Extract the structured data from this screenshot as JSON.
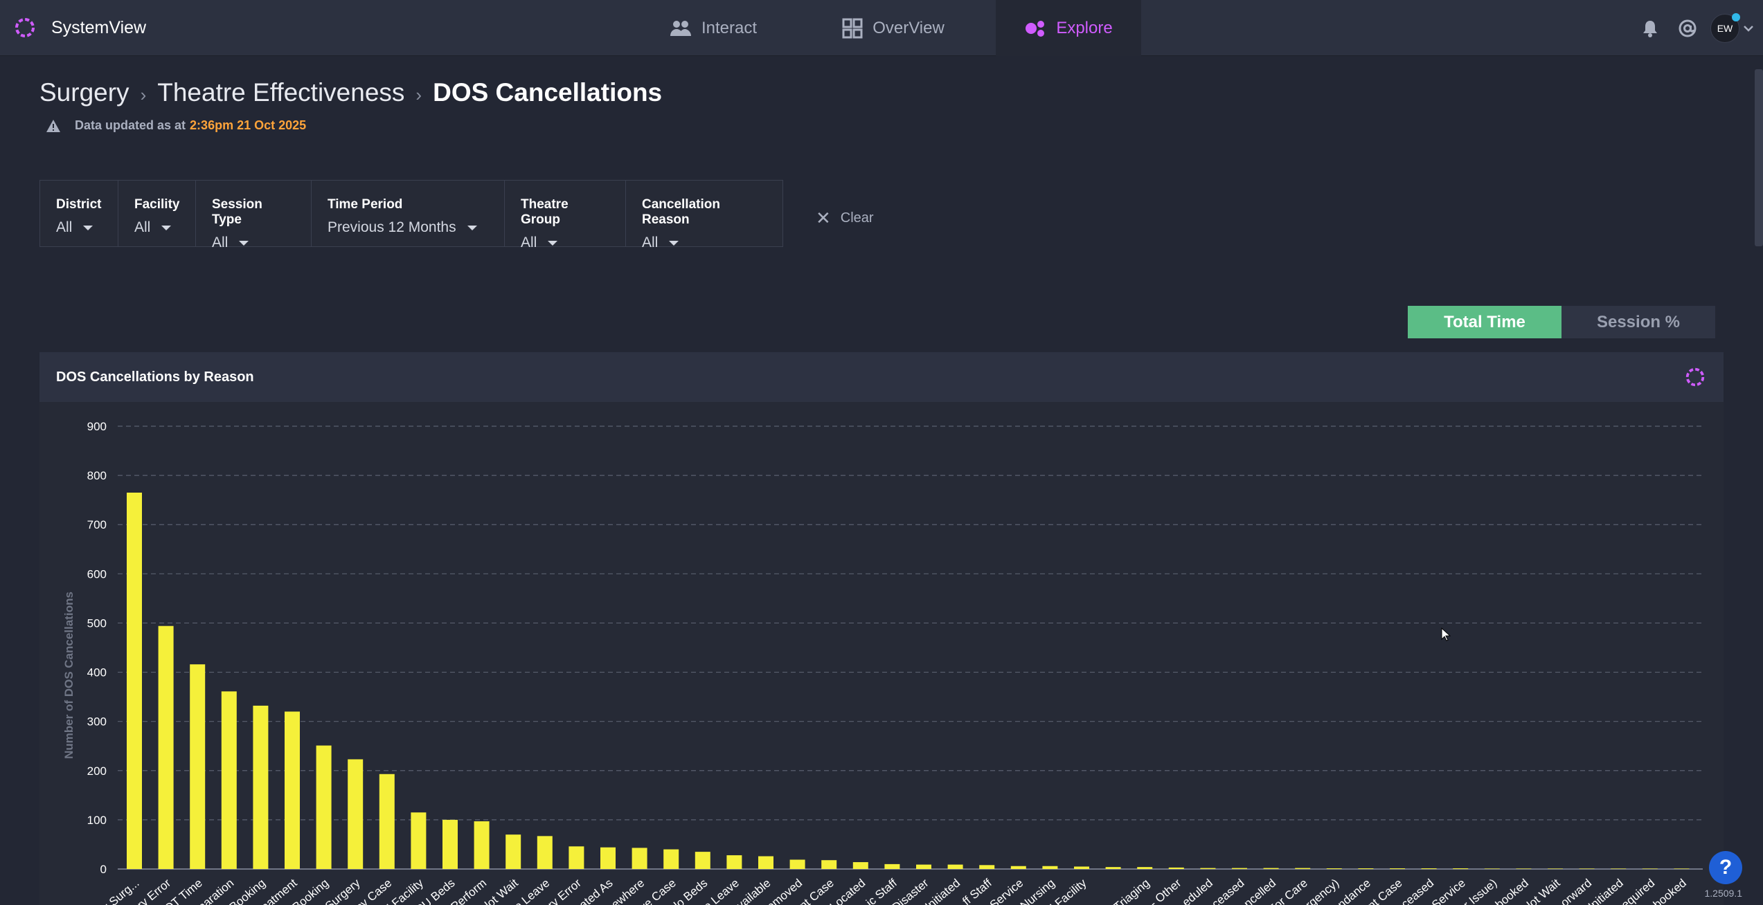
{
  "app": {
    "title": "SystemView"
  },
  "nav": {
    "tabs": [
      {
        "label": "Interact",
        "icon": "people-icon"
      },
      {
        "label": "OverView",
        "icon": "grid-icon"
      },
      {
        "label": "Explore",
        "icon": "explore-icon",
        "active": true
      }
    ],
    "avatar_initials": "EW"
  },
  "breadcrumb": {
    "items": [
      "Surgery",
      "Theatre Effectiveness"
    ],
    "current": "DOS Cancellations"
  },
  "updated": {
    "label": "Data updated as at",
    "timestamp": "2:36pm 21 Oct 2025"
  },
  "filters": [
    {
      "label": "District",
      "value": "All"
    },
    {
      "label": "Facility",
      "value": "All"
    },
    {
      "label": "Session Type",
      "value": "All"
    },
    {
      "label": "Time Period",
      "value": "Previous 12 Months"
    },
    {
      "label": "Theatre Group",
      "value": "All"
    },
    {
      "label": "Cancellation Reason",
      "value": "All"
    }
  ],
  "clear_label": "Clear",
  "toggle": {
    "on_label": "Total Time",
    "off_label": "Session %"
  },
  "panel": {
    "title": "DOS Cancellations by Reason"
  },
  "version": "1.2509.1",
  "help_label": "?",
  "colors": {
    "accent": "#d05cff",
    "bar": "#f5f03a",
    "toggle_active": "#5bbd86",
    "timestamp": "#ffa43a"
  },
  "chart_data": {
    "type": "bar",
    "title": "",
    "xlabel": "",
    "ylabel": "Number of DOS Cancellations",
    "ylim": [
      0,
      900
    ],
    "yticks": [
      0,
      100,
      200,
      300,
      400,
      500,
      600,
      700,
      800,
      900
    ],
    "grid": true,
    "categories": [
      "r Surg...",
      "ry Error",
      "OT Time",
      "paration",
      "Booking",
      "eatment",
      "Booking",
      "Surgery",
      "cy Case",
      "l Facility",
      "CU Beds",
      "Perform",
      "lot Wait",
      "o Leave",
      "ry Error",
      "ated As",
      "ewhere",
      "ve Case",
      "lo Beds",
      "o Leave",
      "vailable",
      "emoved",
      "nt Case",
      "Located",
      "ic Staff",
      "Disaster",
      "Initiated",
      "ff Staff",
      "Service",
      "Nursing",
      "l Facility",
      "",
      "Triaging",
      "- Other",
      "eduled",
      "ceased",
      "ncelled",
      "For Care",
      "rgency)",
      "ndance",
      "nt Case",
      "ceased",
      "Service",
      "r Issue)",
      "nbooked",
      "lot Wait",
      "orward",
      "Initiated",
      "equired",
      "nbooked"
    ],
    "values": [
      765,
      494,
      416,
      361,
      332,
      320,
      251,
      223,
      193,
      115,
      100,
      97,
      70,
      67,
      46,
      44,
      43,
      40,
      35,
      28,
      26,
      19,
      18,
      14,
      10,
      9,
      9,
      8,
      6,
      6,
      5,
      4,
      4,
      3,
      2,
      2,
      2,
      2,
      1,
      1,
      1,
      1,
      1,
      0,
      0,
      0,
      0,
      0,
      0,
      0
    ]
  }
}
